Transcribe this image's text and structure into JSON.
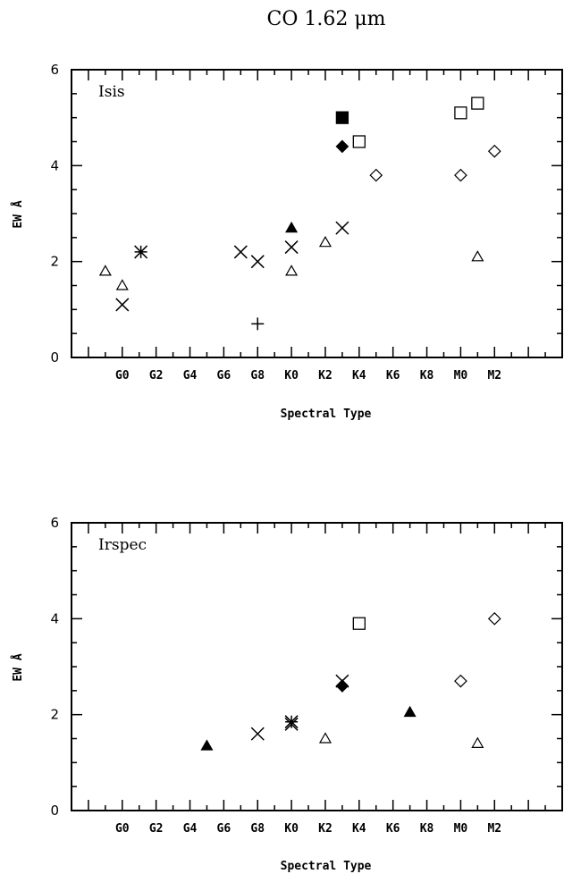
{
  "figure_title": "CO  1.62 μm",
  "chart_data": [
    {
      "type": "scatter",
      "panel_label": "Isis",
      "xlabel": "Spectral Type",
      "ylabel": "EW Å",
      "xlim": [
        -3,
        26
      ],
      "ylim": [
        0,
        6
      ],
      "y_ticks": [
        0,
        2,
        4,
        6
      ],
      "x_tick_labels": [
        "G0",
        "G2",
        "G4",
        "G6",
        "G8",
        "K0",
        "K2",
        "K4",
        "K6",
        "K8",
        "M0",
        "M2"
      ],
      "x_tick_positions": [
        0,
        2,
        4,
        6,
        8,
        10,
        12,
        14,
        16,
        18,
        20,
        22
      ],
      "grid": false,
      "points": [
        {
          "x": -1,
          "y": 1.8,
          "marker": "triangle-open"
        },
        {
          "x": 0,
          "y": 1.5,
          "marker": "triangle-open"
        },
        {
          "x": 0,
          "y": 1.1,
          "marker": "cross"
        },
        {
          "x": 1.1,
          "y": 2.2,
          "marker": "asterisk"
        },
        {
          "x": 7,
          "y": 2.2,
          "marker": "cross"
        },
        {
          "x": 8,
          "y": 2.0,
          "marker": "cross"
        },
        {
          "x": 8,
          "y": 0.7,
          "marker": "plus"
        },
        {
          "x": 10,
          "y": 2.7,
          "marker": "triangle-filled"
        },
        {
          "x": 10,
          "y": 2.3,
          "marker": "cross"
        },
        {
          "x": 10,
          "y": 1.8,
          "marker": "triangle-open"
        },
        {
          "x": 12,
          "y": 2.4,
          "marker": "triangle-open"
        },
        {
          "x": 13,
          "y": 2.7,
          "marker": "cross"
        },
        {
          "x": 13,
          "y": 5.0,
          "marker": "square-filled"
        },
        {
          "x": 13,
          "y": 4.4,
          "marker": "diamond-filled"
        },
        {
          "x": 14,
          "y": 4.5,
          "marker": "square-open"
        },
        {
          "x": 15,
          "y": 3.8,
          "marker": "diamond-open"
        },
        {
          "x": 20,
          "y": 5.1,
          "marker": "square-open"
        },
        {
          "x": 20,
          "y": 3.8,
          "marker": "diamond-open"
        },
        {
          "x": 21,
          "y": 5.3,
          "marker": "square-open"
        },
        {
          "x": 21,
          "y": 2.1,
          "marker": "triangle-open"
        },
        {
          "x": 22,
          "y": 4.3,
          "marker": "diamond-open"
        }
      ]
    },
    {
      "type": "scatter",
      "panel_label": "Irspec",
      "xlabel": "Spectral Type",
      "ylabel": "EW Å",
      "xlim": [
        -3,
        26
      ],
      "ylim": [
        0,
        6
      ],
      "y_ticks": [
        0,
        2,
        4,
        6
      ],
      "x_tick_labels": [
        "G0",
        "G2",
        "G4",
        "G6",
        "G8",
        "K0",
        "K2",
        "K4",
        "K6",
        "K8",
        "M0",
        "M2"
      ],
      "x_tick_positions": [
        0,
        2,
        4,
        6,
        8,
        10,
        12,
        14,
        16,
        18,
        20,
        22
      ],
      "grid": false,
      "points": [
        {
          "x": 5,
          "y": 1.35,
          "marker": "triangle-filled"
        },
        {
          "x": 8,
          "y": 1.6,
          "marker": "cross"
        },
        {
          "x": 10,
          "y": 1.85,
          "marker": "asterisk"
        },
        {
          "x": 10,
          "y": 1.8,
          "marker": "cross"
        },
        {
          "x": 12,
          "y": 1.5,
          "marker": "triangle-open"
        },
        {
          "x": 13,
          "y": 2.7,
          "marker": "cross"
        },
        {
          "x": 13,
          "y": 2.6,
          "marker": "diamond-filled"
        },
        {
          "x": 14,
          "y": 3.9,
          "marker": "square-open"
        },
        {
          "x": 17,
          "y": 2.05,
          "marker": "triangle-filled"
        },
        {
          "x": 20,
          "y": 2.7,
          "marker": "diamond-open"
        },
        {
          "x": 21,
          "y": 1.4,
          "marker": "triangle-open"
        },
        {
          "x": 22,
          "y": 4.0,
          "marker": "diamond-open"
        }
      ]
    }
  ]
}
